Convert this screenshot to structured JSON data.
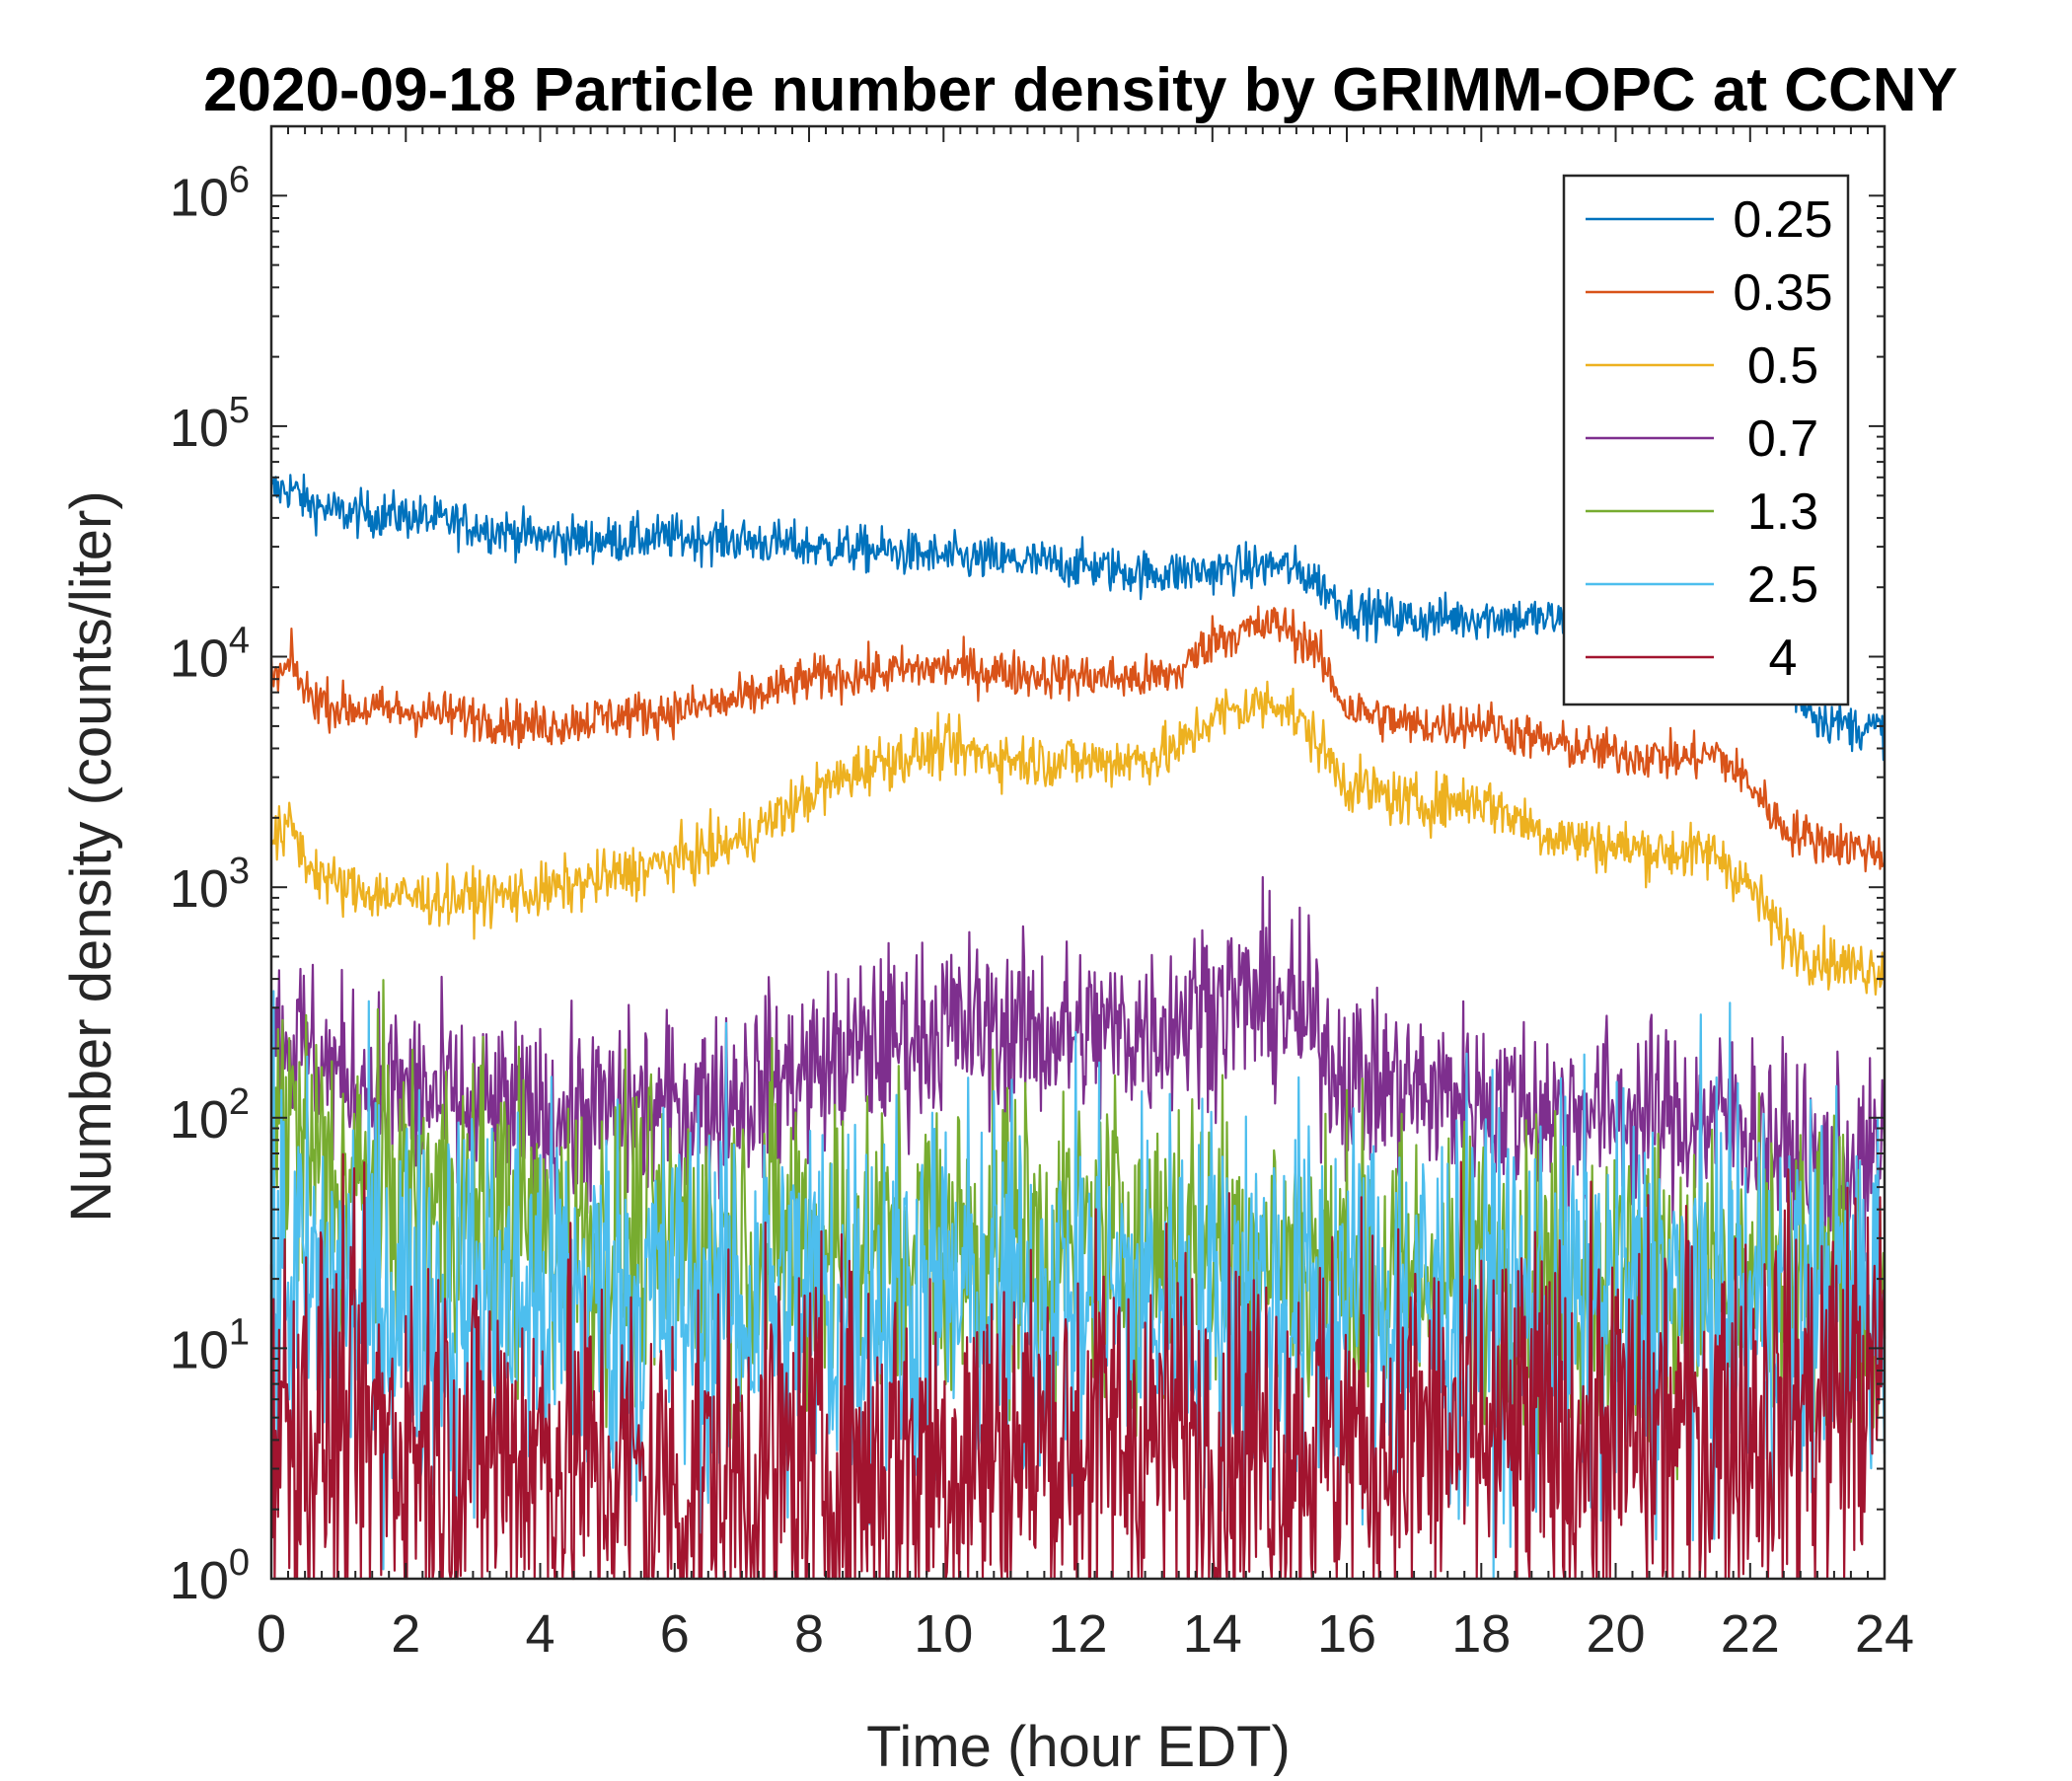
{
  "chart_data": {
    "type": "line",
    "title": "2020-09-18 Particle number density by GRIMM-OPC at CCNY",
    "xlabel": "Time (hour EDT)",
    "ylabel": "Number density (counts/liter)",
    "xlim": [
      0,
      24
    ],
    "ylim": [
      1,
      2000000
    ],
    "yscale": "log",
    "x_ticks": [
      0,
      2,
      4,
      6,
      8,
      10,
      12,
      14,
      16,
      18,
      20,
      22,
      24
    ],
    "x_tick_labels": [
      "0",
      "2",
      "4",
      "6",
      "8",
      "10",
      "12",
      "14",
      "16",
      "18",
      "20",
      "22",
      "24"
    ],
    "y_ticks": [
      1,
      10,
      100,
      1000,
      10000,
      100000,
      1000000
    ],
    "y_tick_labels": [
      {
        "base": "10",
        "exp": "0"
      },
      {
        "base": "10",
        "exp": "1"
      },
      {
        "base": "10",
        "exp": "2"
      },
      {
        "base": "10",
        "exp": "3"
      },
      {
        "base": "10",
        "exp": "4"
      },
      {
        "base": "10",
        "exp": "5"
      },
      {
        "base": "10",
        "exp": "6"
      }
    ],
    "grid": false,
    "legend_position": "top-right",
    "series": [
      {
        "name": "0.25",
        "color": "#0072BD",
        "x": [
          0,
          0.3,
          0.5,
          1,
          2,
          3,
          4,
          5,
          6,
          7,
          8,
          9,
          10,
          11,
          12,
          13,
          14,
          15,
          15.5,
          16,
          17,
          18,
          19,
          20,
          21,
          22,
          22.5,
          23,
          23.5,
          24
        ],
        "y": [
          52000,
          54000,
          47000,
          42000,
          41000,
          37000,
          33000,
          32000,
          33000,
          32000,
          30000,
          29000,
          27000,
          26000,
          25000,
          23000,
          23500,
          25000,
          22000,
          16000,
          14500,
          15000,
          14500,
          14000,
          13000,
          11000,
          8000,
          5500,
          5000,
          4800
        ],
        "noise": 0.05
      },
      {
        "name": "0.35",
        "color": "#D95319",
        "x": [
          0,
          0.2,
          0.3,
          0.5,
          1,
          2,
          3,
          4,
          5,
          6,
          7,
          8,
          9,
          10,
          11,
          12,
          13,
          13.5,
          14,
          15,
          15.5,
          16,
          17,
          18,
          19,
          20,
          21,
          21.5,
          22,
          22.5,
          23,
          23.5,
          24
        ],
        "y": [
          8000,
          8500,
          9500,
          7000,
          6000,
          5800,
          5500,
          5000,
          5500,
          5800,
          6500,
          8000,
          8500,
          9000,
          8500,
          8200,
          8000,
          8500,
          12000,
          14000,
          11000,
          6000,
          5000,
          5200,
          4200,
          3800,
          3600,
          3800,
          2800,
          1800,
          1600,
          1500,
          1400
        ],
        "noise": 0.05
      },
      {
        "name": "0.5",
        "color": "#EDB120",
        "x": [
          0,
          0.2,
          0.3,
          0.5,
          1,
          2,
          3,
          4,
          5,
          6,
          7,
          8,
          9,
          10,
          11,
          12,
          13,
          13.5,
          14,
          15,
          15.5,
          16,
          17,
          18,
          19,
          20,
          21,
          21.5,
          22,
          22.5,
          23,
          23.5,
          24
        ],
        "y": [
          1600,
          1700,
          1900,
          1300,
          1000,
          900,
          900,
          950,
          1100,
          1300,
          1600,
          2500,
          3500,
          4000,
          3600,
          3500,
          3600,
          4000,
          5500,
          6500,
          4500,
          2800,
          2300,
          2400,
          1700,
          1500,
          1400,
          1400,
          1000,
          600,
          500,
          450,
          450
        ],
        "noise": 0.06
      },
      {
        "name": "0.7",
        "color": "#7E2F8E",
        "x": [
          0,
          0.5,
          1,
          2,
          3,
          4,
          5,
          6,
          7,
          8,
          9,
          10,
          11,
          12,
          13,
          14,
          15,
          15.5,
          16,
          17,
          18,
          19,
          20,
          21,
          22,
          23,
          24
        ],
        "y": [
          250,
          200,
          150,
          130,
          110,
          100,
          105,
          110,
          130,
          160,
          210,
          250,
          240,
          230,
          240,
          320,
          320,
          240,
          150,
          130,
          120,
          110,
          105,
          100,
          95,
          60,
          65
        ],
        "noise": 0.2
      },
      {
        "name": "1.3",
        "color": "#77AC30",
        "x": [
          0,
          0.3,
          0.5,
          1,
          2,
          3,
          4,
          5,
          6,
          7,
          8,
          9,
          10,
          11,
          12,
          13,
          14,
          15,
          16,
          17,
          18,
          19,
          20,
          21,
          22,
          23,
          24
        ],
        "y": [
          100,
          90,
          70,
          50,
          45,
          40,
          32,
          30,
          30,
          30,
          30,
          28,
          28,
          30,
          30,
          30,
          30,
          25,
          22,
          20,
          20,
          20,
          20,
          18,
          18,
          18,
          18
        ],
        "noise": 0.35
      },
      {
        "name": "2.5",
        "color": "#4DBEEE",
        "x": [
          0,
          2,
          4,
          6,
          8,
          10,
          12,
          14,
          16,
          18,
          20,
          22,
          24
        ],
        "y": [
          20,
          17,
          16,
          16,
          16,
          16,
          16,
          16,
          15,
          15,
          15,
          15,
          16
        ],
        "noise": 0.45
      },
      {
        "name": "4",
        "color": "#A2142F",
        "x": [
          0,
          2,
          4,
          6,
          8,
          10,
          12,
          14,
          16,
          18,
          20,
          22,
          24
        ],
        "y": [
          5,
          4,
          3.5,
          2.5,
          3,
          3.5,
          4,
          4,
          4,
          4,
          4,
          5,
          7
        ],
        "noise": 0.45
      }
    ]
  }
}
